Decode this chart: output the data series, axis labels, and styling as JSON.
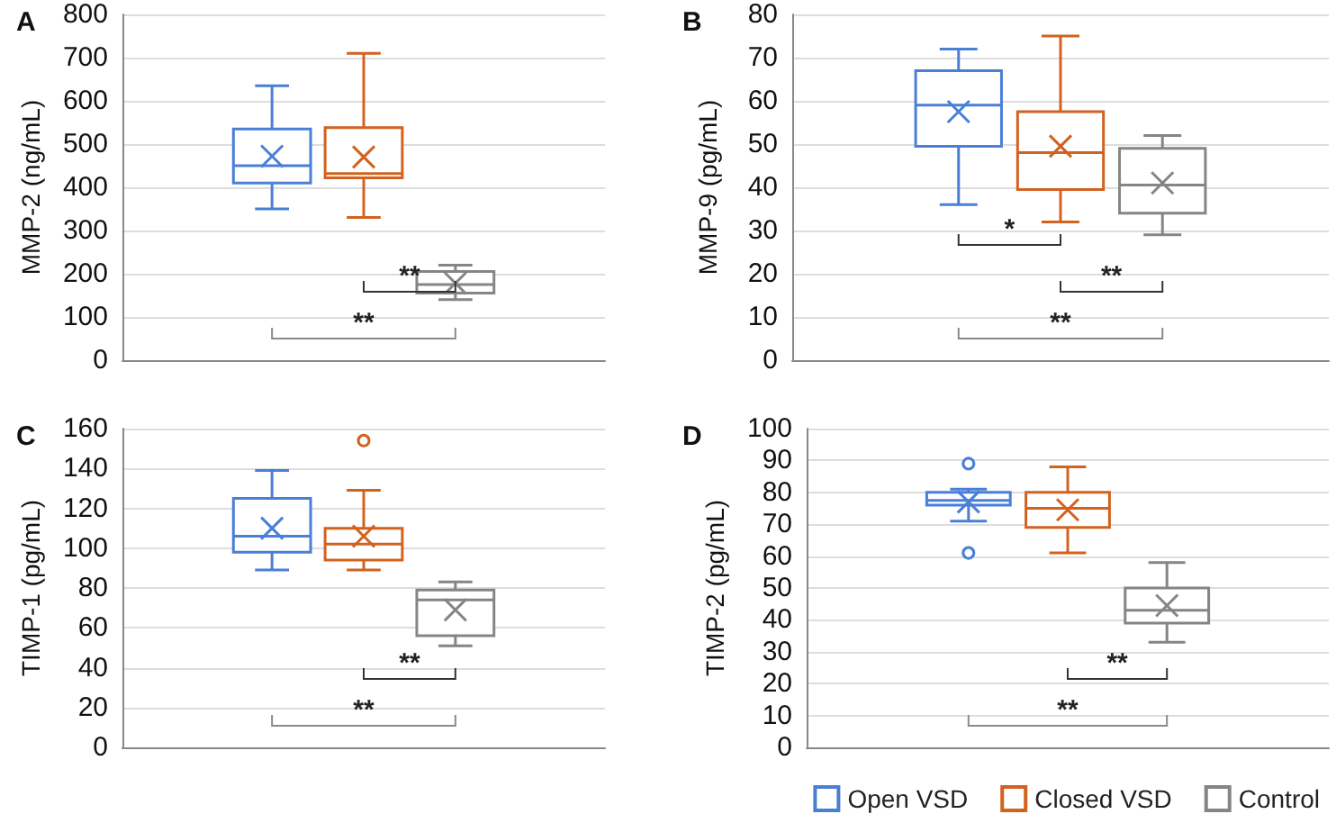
{
  "chart_data": [
    {
      "type": "box",
      "title": "A",
      "ylabel": "MMP-2 (ng/mL)",
      "categories": [
        null
      ],
      "ylim": [
        0,
        800
      ],
      "yticks": [
        0,
        100,
        200,
        300,
        400,
        500,
        600,
        700,
        800
      ],
      "grid": "y",
      "tick_labels": "y",
      "series": [
        {
          "color": "#4a7fd6",
          "boxes": [
            {
              "low": 350,
              "q1": 410,
              "median": 450,
              "q3": 535,
              "high": 635,
              "mean": 472
            }
          ]
        },
        {
          "color": "#d2621e",
          "boxes": [
            {
              "low": 330,
              "q1": 422,
              "median": 432,
              "q3": 538,
              "high": 710,
              "mean": 470
            }
          ]
        },
        {
          "color": "#858585",
          "boxes": [
            {
              "low": 140,
              "q1": 155,
              "median": 175,
              "q3": 205,
              "high": 220,
              "mean": 178
            }
          ]
        }
      ],
      "annotations": [
        "**",
        "**"
      ]
    },
    {
      "type": "box",
      "title": "B",
      "ylabel": "MMP-9 (pg/mL)",
      "categories": [
        null
      ],
      "ylim": [
        0,
        80
      ],
      "yticks": [
        0,
        10,
        20,
        30,
        40,
        50,
        60,
        70,
        80
      ],
      "grid": "y",
      "tick_labels": "y",
      "series": [
        {
          "color": "#4a7fd6",
          "boxes": [
            {
              "low": 36,
              "q1": 49.5,
              "median": 59,
              "q3": 67,
              "high": 72,
              "mean": 57.5
            }
          ]
        },
        {
          "color": "#d2621e",
          "boxes": [
            {
              "low": 32,
              "q1": 39.5,
              "median": 48,
              "q3": 57.5,
              "high": 75,
              "mean": 49.5
            }
          ]
        },
        {
          "color": "#858585",
          "boxes": [
            {
              "low": 29,
              "q1": 34,
              "median": 40.5,
              "q3": 49,
              "high": 52,
              "mean": 41
            }
          ]
        }
      ],
      "annotations": [
        "*",
        "**",
        "**"
      ]
    },
    {
      "type": "box",
      "title": "C",
      "ylabel": "TIMP-1 (pg/mL)",
      "categories": [
        null
      ],
      "ylim": [
        0,
        160
      ],
      "yticks": [
        0,
        20,
        40,
        60,
        80,
        100,
        120,
        140,
        160
      ],
      "grid": "y",
      "tick_labels": "y",
      "series": [
        {
          "color": "#4a7fd6",
          "boxes": [
            {
              "low": 89,
              "q1": 98,
              "median": 106,
              "q3": 125,
              "high": 139,
              "mean": 110
            }
          ]
        },
        {
          "color": "#d2621e",
          "boxes": [
            {
              "low": 89,
              "q1": 94,
              "median": 102,
              "q3": 110,
              "high": 129,
              "mean": 106,
              "outliers": [
                154
              ]
            }
          ]
        },
        {
          "color": "#858585",
          "boxes": [
            {
              "low": 51,
              "q1": 56,
              "median": 74,
              "q3": 79,
              "high": 83,
              "mean": 69
            }
          ]
        }
      ],
      "annotations": [
        "**",
        "**"
      ]
    },
    {
      "type": "box",
      "title": "D",
      "ylabel": "TIMP-2 (pg/mL)",
      "categories": [
        null
      ],
      "ylim": [
        0,
        100
      ],
      "yticks": [
        0,
        10,
        20,
        30,
        40,
        50,
        60,
        70,
        80,
        90,
        100
      ],
      "grid": "y",
      "tick_labels": "y",
      "legend": "bottom right",
      "series": [
        {
          "name": "Open VSD",
          "color": "#4a7fd6",
          "boxes": [
            {
              "low": 71,
              "q1": 76,
              "median": 77.5,
              "q3": 80,
              "high": 81,
              "mean": 77,
              "outliers": [
                89,
                61
              ]
            }
          ]
        },
        {
          "name": "Closed VSD",
          "color": "#d2621e",
          "boxes": [
            {
              "low": 61,
              "q1": 69,
              "median": 75,
              "q3": 80,
              "high": 88,
              "mean": 74.5
            }
          ]
        },
        {
          "name": "Control",
          "color": "#858585",
          "boxes": [
            {
              "low": 33,
              "q1": 39,
              "median": 43,
              "q3": 50,
              "high": 58,
              "mean": 44.5
            }
          ]
        }
      ],
      "annotations": [
        "**",
        "**"
      ]
    }
  ]
}
